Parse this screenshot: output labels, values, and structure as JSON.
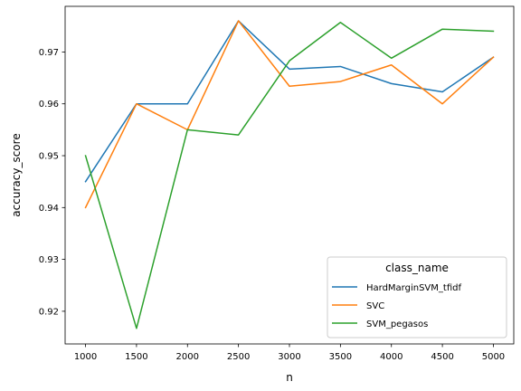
{
  "chart_data": {
    "type": "line",
    "title": "",
    "xlabel": "n",
    "ylabel": "accuracy_score",
    "x": [
      1000,
      1500,
      2000,
      2500,
      3000,
      3500,
      4000,
      4500,
      5000
    ],
    "xticks": [
      1000,
      1500,
      2000,
      2500,
      3000,
      3500,
      4000,
      4500,
      5000
    ],
    "yticks": [
      0.92,
      0.93,
      0.94,
      0.95,
      0.96,
      0.97
    ],
    "xlim": [
      800,
      5200
    ],
    "ylim": [
      0.9137,
      0.9788
    ],
    "grid": false,
    "legend": {
      "title": "class_name",
      "placement": "lower-right"
    },
    "series": [
      {
        "name": "HardMarginSVM_tfidf",
        "color": "#1f77b4",
        "values": [
          0.945,
          0.96,
          0.96,
          0.976,
          0.9667,
          0.9672,
          0.9639,
          0.9623,
          0.969
        ]
      },
      {
        "name": "SVC",
        "color": "#ff7f0e",
        "values": [
          0.94,
          0.96,
          0.955,
          0.976,
          0.9634,
          0.9643,
          0.9675,
          0.96,
          0.969
        ]
      },
      {
        "name": "SVM_pegasos",
        "color": "#2ca02c",
        "values": [
          0.95,
          0.9167,
          0.955,
          0.954,
          0.9683,
          0.9757,
          0.9688,
          0.9744,
          0.974
        ]
      }
    ]
  }
}
